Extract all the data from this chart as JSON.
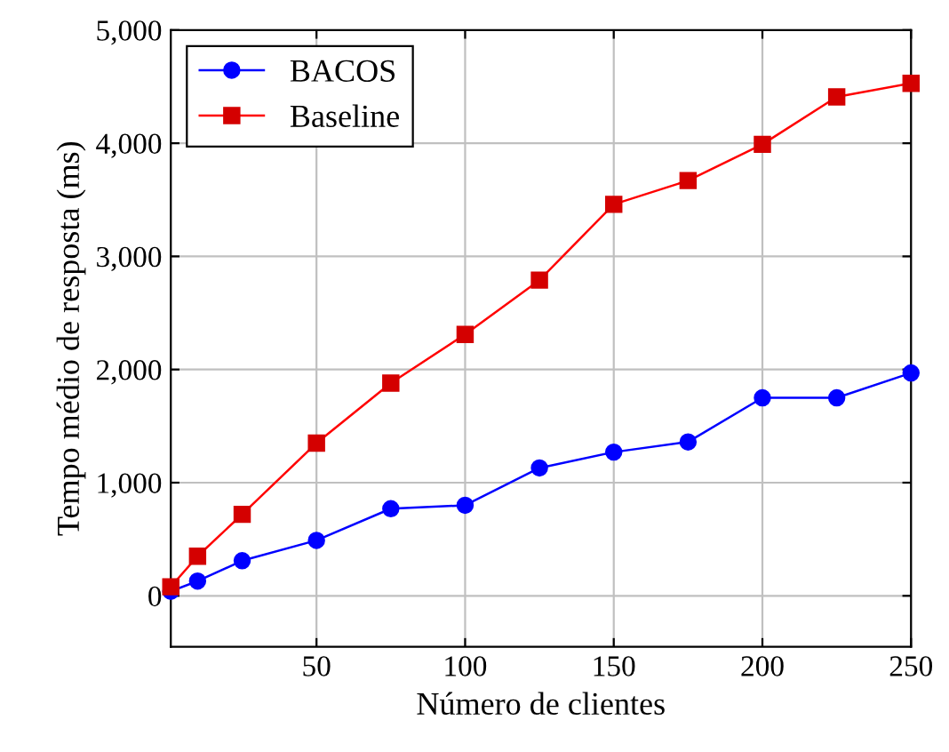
{
  "chart_data": {
    "type": "line",
    "xlabel": "Número de clientes",
    "ylabel": "Tempo médio de resposta (ms)",
    "x": [
      1,
      10,
      25,
      50,
      75,
      100,
      125,
      150,
      175,
      200,
      225,
      250
    ],
    "series": [
      {
        "name": "BACOS",
        "color": "#0000ff",
        "marker": "circle",
        "values": [
          40,
          130,
          310,
          490,
          770,
          800,
          1130,
          1270,
          1360,
          1750,
          1750,
          1970
        ]
      },
      {
        "name": "Baseline",
        "color": "#ff0000",
        "marker": "square",
        "values": [
          80,
          350,
          720,
          1350,
          1880,
          2310,
          2790,
          3460,
          3670,
          3990,
          4410,
          4530
        ]
      }
    ],
    "xlim": [
      1,
      250
    ],
    "xticks": [
      50,
      100,
      150,
      200,
      250
    ],
    "ylim": [
      -450,
      5000
    ],
    "yticks": [
      {
        "value": 0,
        "label": "0"
      },
      {
        "value": 1000,
        "label": "1,000"
      },
      {
        "value": 2000,
        "label": "2,000"
      },
      {
        "value": 3000,
        "label": "3,000"
      },
      {
        "value": 4000,
        "label": "4,000"
      },
      {
        "value": 5000,
        "label": "5,000"
      }
    ],
    "grid": true,
    "legend": "top left",
    "line_style": "solid"
  }
}
